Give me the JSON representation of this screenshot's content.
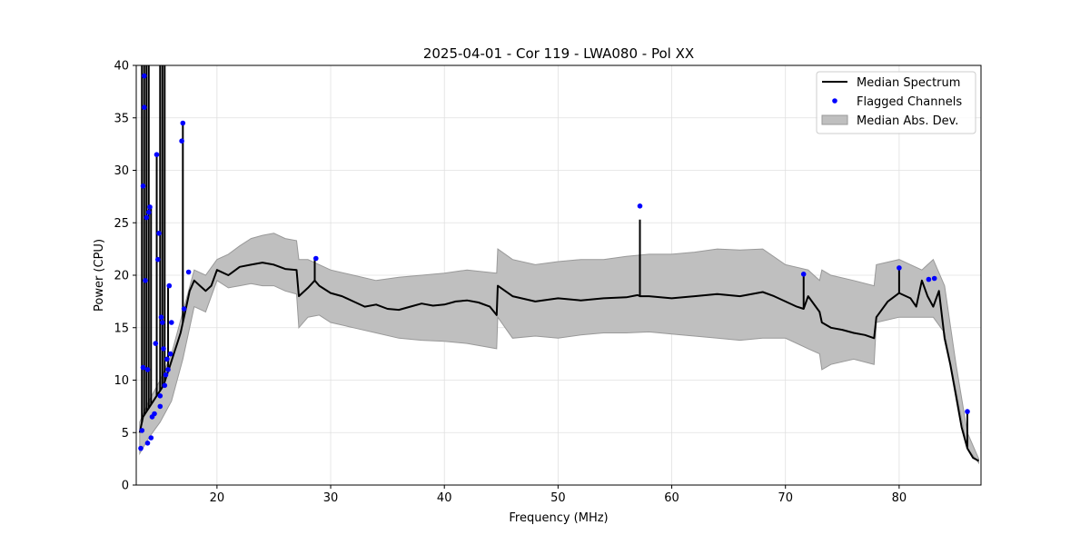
{
  "chart_data": {
    "type": "line",
    "title": "2025-04-01 - Cor 119 - LWA080 - Pol XX",
    "xlabel": "Frequency (MHz)",
    "ylabel": "Power (CPU)",
    "xlim": [
      12.9,
      87.2
    ],
    "ylim": [
      0,
      40
    ],
    "xticks": [
      20,
      30,
      40,
      50,
      60,
      70,
      80
    ],
    "yticks": [
      0,
      5,
      10,
      15,
      20,
      25,
      30,
      35,
      40
    ],
    "grid": true,
    "legend_position": "top-right",
    "colors": {
      "median": "#000000",
      "flagged": "#0000ff",
      "mad": "#bfbfbf",
      "mad_edge": "#999999"
    },
    "legend": [
      {
        "label": "Median Spectrum",
        "kind": "line"
      },
      {
        "label": "Flagged Channels",
        "kind": "marker"
      },
      {
        "label": "Median Abs. Dev.",
        "kind": "band"
      }
    ],
    "series": [
      {
        "name": "Median Spectrum",
        "x": [
          13.2,
          13.5,
          13.8,
          14.1,
          14.4,
          14.7,
          15.0,
          15.3,
          15.6,
          15.9,
          16.2,
          16.5,
          16.8,
          17.0,
          17.3,
          17.6,
          18.0,
          18.5,
          19.0,
          19.5,
          20.0,
          21.0,
          22.0,
          23.0,
          24.0,
          25.0,
          26.0,
          27.0,
          27.2,
          28.0,
          28.6,
          29.0,
          30.0,
          31.0,
          32.0,
          33.0,
          34.0,
          35.0,
          36.0,
          37.0,
          38.0,
          39.0,
          40.0,
          41.0,
          42.0,
          43.0,
          44.0,
          44.6,
          44.7,
          46.0,
          48.0,
          50.0,
          52.0,
          54.0,
          56.0,
          57.0,
          57.2,
          58.0,
          60.0,
          62.0,
          64.0,
          66.0,
          68.0,
          69.0,
          70.0,
          71.0,
          71.6,
          72.0,
          73.0,
          73.2,
          74.0,
          75.0,
          76.0,
          77.0,
          77.8,
          78.0,
          79.0,
          80.0,
          81.0,
          81.5,
          82.0,
          82.5,
          83.0,
          83.5,
          84.0,
          84.5,
          85.0,
          85.5,
          86.0,
          86.5,
          87.0
        ],
        "values": [
          5.0,
          6.5,
          7.0,
          7.5,
          8.0,
          8.5,
          9.0,
          9.5,
          10.5,
          11.5,
          12.5,
          13.5,
          14.5,
          15.5,
          17.0,
          18.5,
          19.5,
          19.0,
          18.5,
          19.0,
          20.5,
          20.0,
          20.8,
          21.0,
          21.2,
          21.0,
          20.6,
          20.5,
          18.0,
          18.8,
          19.5,
          19.0,
          18.3,
          18.0,
          17.5,
          17.0,
          17.2,
          16.8,
          16.7,
          17.0,
          17.3,
          17.1,
          17.2,
          17.5,
          17.6,
          17.4,
          17.0,
          16.2,
          19.0,
          18.0,
          17.5,
          17.8,
          17.6,
          17.8,
          17.9,
          18.1,
          18.0,
          18.0,
          17.8,
          18.0,
          18.2,
          18.0,
          18.4,
          18.0,
          17.5,
          17.0,
          16.8,
          18.0,
          16.5,
          15.5,
          15.0,
          14.8,
          14.5,
          14.3,
          14.0,
          16.0,
          17.5,
          18.3,
          17.8,
          17.0,
          19.5,
          18.0,
          17.0,
          18.5,
          14.0,
          11.5,
          8.5,
          5.5,
          3.5,
          2.6,
          2.3
        ]
      }
    ],
    "mad_band": {
      "x": [
        13.2,
        14.0,
        15.0,
        16.0,
        17.0,
        18.0,
        19.0,
        20.0,
        21.0,
        22.0,
        23.0,
        24.0,
        25.0,
        26.0,
        27.0,
        27.2,
        28.0,
        29.0,
        30.0,
        32.0,
        34.0,
        36.0,
        38.0,
        40.0,
        42.0,
        44.6,
        44.7,
        46.0,
        48.0,
        50.0,
        52.0,
        54.0,
        56.0,
        58.0,
        60.0,
        62.0,
        64.0,
        66.0,
        68.0,
        70.0,
        72.0,
        73.0,
        73.2,
        74.0,
        76.0,
        77.8,
        78.0,
        80.0,
        82.0,
        83.0,
        84.0,
        85.0,
        86.0,
        87.0
      ],
      "upper": [
        6.0,
        8.0,
        10.0,
        12.5,
        16.5,
        20.5,
        20.0,
        21.5,
        22.0,
        22.8,
        23.5,
        23.8,
        24.0,
        23.5,
        23.3,
        21.5,
        21.5,
        21.0,
        20.5,
        20.0,
        19.5,
        19.8,
        20.0,
        20.2,
        20.5,
        20.2,
        22.5,
        21.5,
        21.0,
        21.3,
        21.5,
        21.5,
        21.8,
        22.0,
        22.0,
        22.2,
        22.5,
        22.4,
        22.5,
        21.0,
        20.5,
        19.5,
        20.5,
        20.0,
        19.5,
        19.0,
        21.0,
        21.5,
        20.5,
        21.5,
        19.0,
        11.5,
        5.0,
        2.5
      ],
      "lower": [
        3.0,
        4.5,
        6.0,
        8.0,
        12.0,
        17.0,
        16.5,
        19.5,
        18.8,
        19.0,
        19.2,
        19.0,
        19.0,
        18.5,
        18.2,
        15.0,
        16.0,
        16.2,
        15.5,
        15.0,
        14.5,
        14.0,
        13.8,
        13.7,
        13.5,
        13.0,
        16.0,
        14.0,
        14.2,
        14.0,
        14.3,
        14.5,
        14.5,
        14.6,
        14.4,
        14.2,
        14.0,
        13.8,
        14.0,
        14.0,
        13.0,
        12.5,
        11.0,
        11.5,
        12.0,
        11.5,
        15.5,
        16.0,
        16.0,
        16.0,
        14.5,
        9.0,
        3.5,
        2.1
      ]
    },
    "rfi_spikes": [
      {
        "x": 13.4,
        "top": 40
      },
      {
        "x": 13.6,
        "top": 40
      },
      {
        "x": 13.8,
        "top": 40
      },
      {
        "x": 14.0,
        "top": 40
      },
      {
        "x": 14.2,
        "top": 26.5
      },
      {
        "x": 14.7,
        "top": 31.5
      },
      {
        "x": 15.0,
        "top": 40
      },
      {
        "x": 15.2,
        "top": 40
      },
      {
        "x": 15.4,
        "top": 40
      },
      {
        "x": 15.7,
        "top": 19.0
      },
      {
        "x": 17.0,
        "top": 34.5
      },
      {
        "x": 28.6,
        "top": 21.6
      },
      {
        "x": 57.2,
        "top": 25.3
      },
      {
        "x": 71.6,
        "top": 20.1
      },
      {
        "x": 80.0,
        "top": 20.7
      },
      {
        "x": 86.0,
        "top": 7.0
      }
    ],
    "flagged_channels": {
      "x": [
        13.3,
        13.4,
        13.5,
        13.5,
        13.6,
        13.6,
        13.7,
        13.8,
        13.9,
        13.9,
        14.0,
        14.1,
        14.2,
        14.3,
        14.5,
        14.6,
        14.7,
        14.8,
        14.9,
        15.0,
        15.0,
        15.1,
        15.2,
        15.3,
        15.4,
        15.5,
        15.6,
        15.7,
        15.8,
        15.9,
        16.0,
        16.9,
        17.0,
        17.1,
        17.5,
        28.7,
        57.2,
        71.6,
        80.0,
        82.6,
        83.1,
        86.0
      ],
      "y": [
        3.5,
        5.2,
        11.2,
        28.5,
        39.0,
        36.0,
        19.5,
        25.5,
        4.0,
        11.0,
        26.0,
        26.5,
        4.5,
        6.5,
        6.8,
        13.5,
        31.5,
        21.5,
        24.0,
        7.5,
        8.5,
        16.0,
        15.5,
        13.0,
        9.5,
        10.5,
        12.0,
        11.0,
        19.0,
        12.5,
        15.5,
        32.8,
        34.5,
        16.8,
        20.3,
        21.6,
        26.6,
        20.1,
        20.7,
        19.6,
        19.7,
        7.0
      ]
    }
  }
}
